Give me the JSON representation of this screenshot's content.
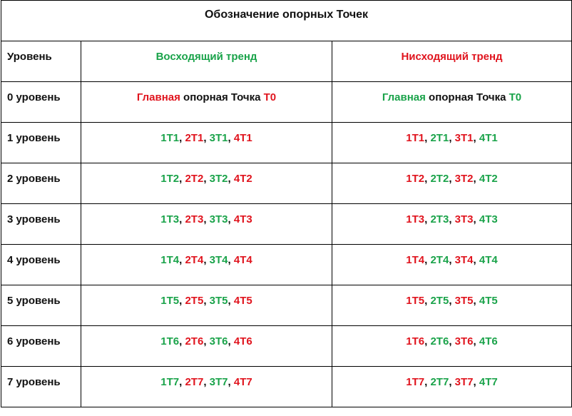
{
  "title": "Обозначение опорных Точек",
  "header": {
    "level": "Уровень",
    "up": "Восходящий тренд",
    "down": "Нисходящий тренд"
  },
  "colors": {
    "green": "#1aa34a",
    "red": "#e0141e",
    "black": "#111111"
  },
  "rows": [
    {
      "level": "0 уровень",
      "up": [
        {
          "text": "Главная",
          "color": "r"
        },
        {
          "text": " опорная Точка ",
          "color": "k"
        },
        {
          "text": "Т0",
          "color": "r"
        }
      ],
      "down": [
        {
          "text": "Главная",
          "color": "g"
        },
        {
          "text": " опорная Точка ",
          "color": "k"
        },
        {
          "text": "Т0",
          "color": "g"
        }
      ]
    },
    {
      "level": "1 уровень",
      "up": [
        {
          "text": "1Т1",
          "color": "g"
        },
        {
          "text": ", ",
          "color": "k"
        },
        {
          "text": "2Т1",
          "color": "r"
        },
        {
          "text": ", ",
          "color": "k"
        },
        {
          "text": "3Т1",
          "color": "g"
        },
        {
          "text": ", ",
          "color": "k"
        },
        {
          "text": "4Т1",
          "color": "r"
        }
      ],
      "down": [
        {
          "text": "1Т1",
          "color": "r"
        },
        {
          "text": ", ",
          "color": "k"
        },
        {
          "text": "2Т1",
          "color": "g"
        },
        {
          "text": ", ",
          "color": "k"
        },
        {
          "text": "3Т1",
          "color": "r"
        },
        {
          "text": ", ",
          "color": "k"
        },
        {
          "text": "4Т1",
          "color": "g"
        }
      ]
    },
    {
      "level": "2 уровень",
      "up": [
        {
          "text": "1Т2",
          "color": "g"
        },
        {
          "text": ", ",
          "color": "k"
        },
        {
          "text": "2Т2",
          "color": "r"
        },
        {
          "text": ", ",
          "color": "k"
        },
        {
          "text": "3Т2",
          "color": "g"
        },
        {
          "text": ", ",
          "color": "k"
        },
        {
          "text": "4Т2",
          "color": "r"
        }
      ],
      "down": [
        {
          "text": "1Т2",
          "color": "r"
        },
        {
          "text": ", ",
          "color": "k"
        },
        {
          "text": "2Т2",
          "color": "g"
        },
        {
          "text": ", ",
          "color": "k"
        },
        {
          "text": "3Т2",
          "color": "r"
        },
        {
          "text": ", ",
          "color": "k"
        },
        {
          "text": "4Т2",
          "color": "g"
        }
      ]
    },
    {
      "level": "3 уровень",
      "up": [
        {
          "text": "1Т3",
          "color": "g"
        },
        {
          "text": ", ",
          "color": "k"
        },
        {
          "text": "2Т3",
          "color": "r"
        },
        {
          "text": ", ",
          "color": "k"
        },
        {
          "text": "3Т3",
          "color": "g"
        },
        {
          "text": ", ",
          "color": "k"
        },
        {
          "text": "4Т3",
          "color": "r"
        }
      ],
      "down": [
        {
          "text": "1Т3",
          "color": "r"
        },
        {
          "text": ", ",
          "color": "k"
        },
        {
          "text": "2Т3",
          "color": "g"
        },
        {
          "text": ", ",
          "color": "k"
        },
        {
          "text": "3Т3",
          "color": "r"
        },
        {
          "text": ", ",
          "color": "k"
        },
        {
          "text": "4Т3",
          "color": "g"
        }
      ]
    },
    {
      "level": "4 уровень",
      "up": [
        {
          "text": "1Т4",
          "color": "g"
        },
        {
          "text": ", ",
          "color": "k"
        },
        {
          "text": "2Т4",
          "color": "r"
        },
        {
          "text": ", ",
          "color": "k"
        },
        {
          "text": "3Т4",
          "color": "g"
        },
        {
          "text": ", ",
          "color": "k"
        },
        {
          "text": "4Т4",
          "color": "r"
        }
      ],
      "down": [
        {
          "text": "1Т4",
          "color": "r"
        },
        {
          "text": ", ",
          "color": "k"
        },
        {
          "text": "2Т4",
          "color": "g"
        },
        {
          "text": ", ",
          "color": "k"
        },
        {
          "text": "3Т4",
          "color": "r"
        },
        {
          "text": ", ",
          "color": "k"
        },
        {
          "text": "4Т4",
          "color": "g"
        }
      ]
    },
    {
      "level": "5 уровень",
      "up": [
        {
          "text": "1Т5",
          "color": "g"
        },
        {
          "text": ", ",
          "color": "k"
        },
        {
          "text": "2Т5",
          "color": "r"
        },
        {
          "text": ", ",
          "color": "k"
        },
        {
          "text": "3Т5",
          "color": "g"
        },
        {
          "text": ", ",
          "color": "k"
        },
        {
          "text": "4Т5",
          "color": "r"
        }
      ],
      "down": [
        {
          "text": "1Т5",
          "color": "r"
        },
        {
          "text": ", ",
          "color": "k"
        },
        {
          "text": "2Т5",
          "color": "g"
        },
        {
          "text": ", ",
          "color": "k"
        },
        {
          "text": "3Т5",
          "color": "r"
        },
        {
          "text": ", ",
          "color": "k"
        },
        {
          "text": "4Т5",
          "color": "g"
        }
      ]
    },
    {
      "level": "6 уровень",
      "up": [
        {
          "text": "1Т6",
          "color": "g"
        },
        {
          "text": ", ",
          "color": "k"
        },
        {
          "text": "2Т6",
          "color": "r"
        },
        {
          "text": ", ",
          "color": "k"
        },
        {
          "text": "3Т6",
          "color": "g"
        },
        {
          "text": ", ",
          "color": "k"
        },
        {
          "text": "4Т6",
          "color": "r"
        }
      ],
      "down": [
        {
          "text": "1Т6",
          "color": "r"
        },
        {
          "text": ", ",
          "color": "k"
        },
        {
          "text": "2Т6",
          "color": "g"
        },
        {
          "text": ", ",
          "color": "k"
        },
        {
          "text": "3Т6",
          "color": "r"
        },
        {
          "text": ", ",
          "color": "k"
        },
        {
          "text": "4Т6",
          "color": "g"
        }
      ]
    },
    {
      "level": "7 уровень",
      "up": [
        {
          "text": "1Т7",
          "color": "g"
        },
        {
          "text": ", ",
          "color": "k"
        },
        {
          "text": "2Т7",
          "color": "r"
        },
        {
          "text": ", ",
          "color": "k"
        },
        {
          "text": "3Т7",
          "color": "g"
        },
        {
          "text": ", ",
          "color": "k"
        },
        {
          "text": "4Т7",
          "color": "r"
        }
      ],
      "down": [
        {
          "text": "1Т7",
          "color": "r"
        },
        {
          "text": ", ",
          "color": "k"
        },
        {
          "text": "2Т7",
          "color": "g"
        },
        {
          "text": ", ",
          "color": "k"
        },
        {
          "text": "3Т7",
          "color": "r"
        },
        {
          "text": ", ",
          "color": "k"
        },
        {
          "text": "4Т7",
          "color": "g"
        }
      ]
    }
  ]
}
